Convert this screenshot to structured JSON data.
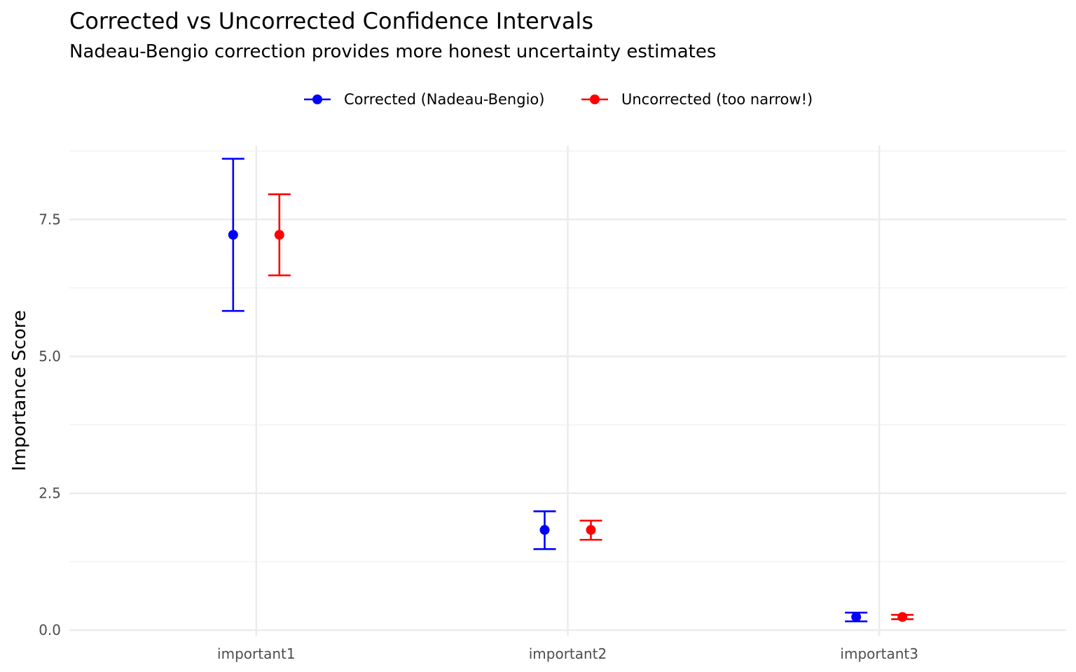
{
  "chart_data": {
    "type": "errorbar",
    "title": "Corrected vs Uncorrected Confidence Intervals",
    "subtitle": "Nadeau-Bengio correction provides more honest uncertainty estimates",
    "xlabel": "",
    "ylabel": "Importance Score",
    "categories": [
      "important1",
      "important2",
      "important3"
    ],
    "ylim": [
      -0.1,
      8.85
    ],
    "yticks": [
      0.0,
      2.5,
      5.0,
      7.5
    ],
    "ytick_labels": [
      "0.0",
      "2.5",
      "5.0",
      "7.5"
    ],
    "grid": true,
    "legend_position": "top",
    "series": [
      {
        "name": "Corrected (Nadeau-Bengio)",
        "color": "#0000ff",
        "points": [
          {
            "category": "important1",
            "estimate": 7.22,
            "lower": 5.83,
            "upper": 8.61
          },
          {
            "category": "important2",
            "estimate": 1.83,
            "lower": 1.48,
            "upper": 2.17
          },
          {
            "category": "important3",
            "estimate": 0.24,
            "lower": 0.16,
            "upper": 0.32
          }
        ]
      },
      {
        "name": "Uncorrected (too narrow!)",
        "color": "#ff0000",
        "points": [
          {
            "category": "important1",
            "estimate": 7.22,
            "lower": 6.48,
            "upper": 7.96
          },
          {
            "category": "important2",
            "estimate": 1.83,
            "lower": 1.65,
            "upper": 2.0
          },
          {
            "category": "important3",
            "estimate": 0.24,
            "lower": 0.2,
            "upper": 0.28
          }
        ]
      }
    ]
  }
}
